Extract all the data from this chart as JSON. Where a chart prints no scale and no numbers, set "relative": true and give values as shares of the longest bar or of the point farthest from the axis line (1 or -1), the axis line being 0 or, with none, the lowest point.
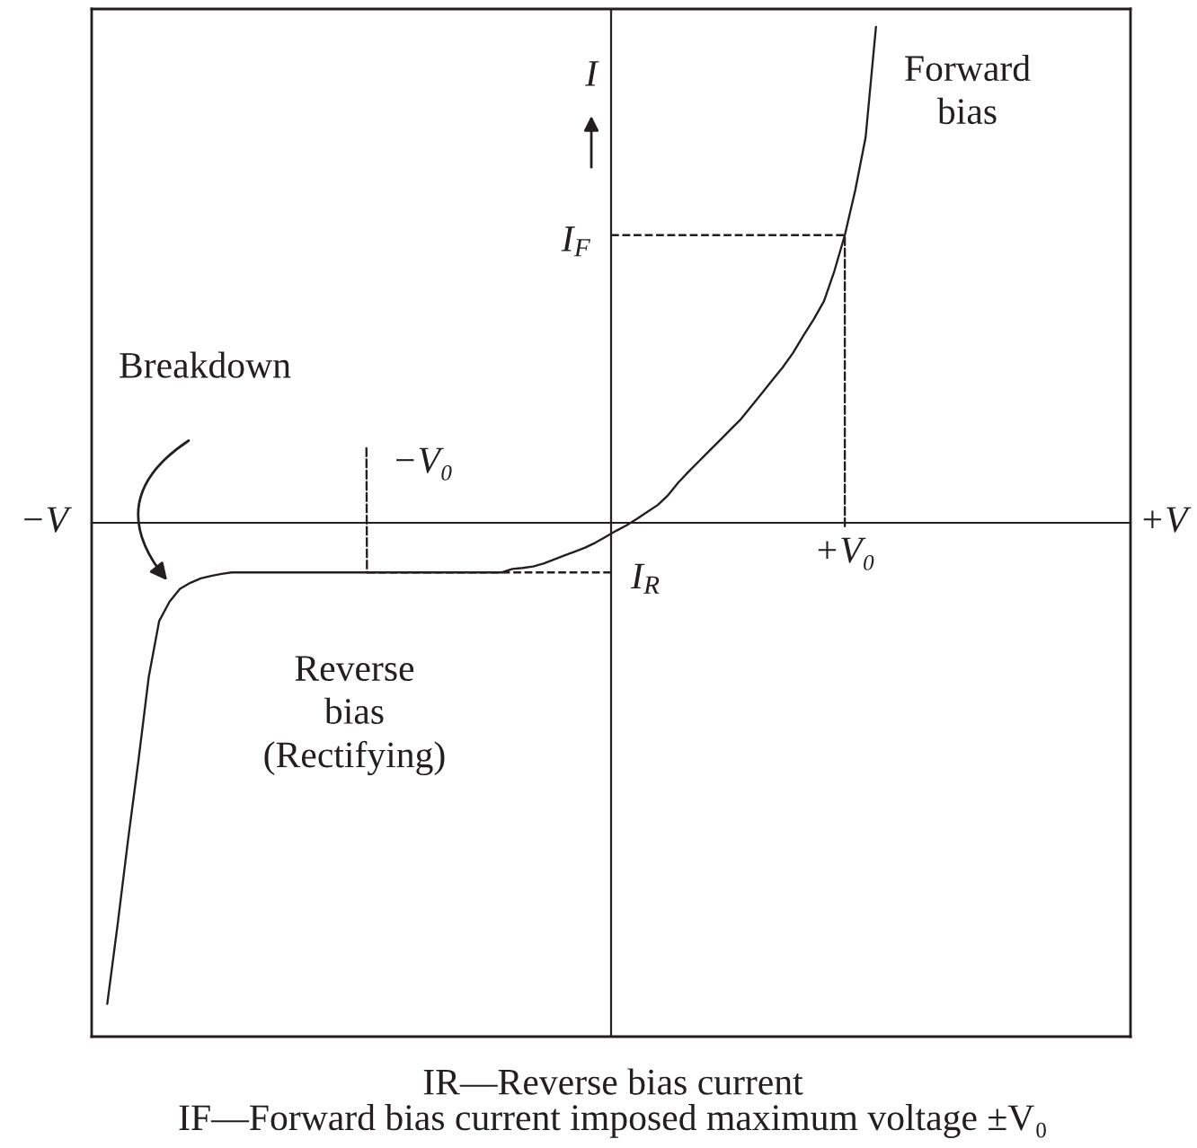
{
  "chart_data": {
    "type": "line",
    "relative": true,
    "ylabel": "I",
    "categories": [
      null,
      null,
      null,
      null,
      null,
      null,
      null,
      null,
      null,
      null,
      null,
      null,
      null,
      null,
      null,
      null,
      null,
      null,
      null,
      null,
      null,
      null,
      null,
      null,
      null,
      null,
      null,
      null,
      null,
      null,
      null,
      null,
      null,
      null,
      null,
      null,
      null,
      null,
      null,
      null,
      null,
      null,
      null,
      null,
      null,
      null,
      null,
      null,
      null,
      null,
      null,
      null,
      null,
      null,
      null,
      null,
      null,
      null,
      null,
      null,
      null,
      null,
      null,
      null,
      null,
      null,
      null,
      null,
      null,
      null,
      null,
      null,
      null,
      null,
      null,
      null,
      null,
      null,
      null,
      null,
      null,
      null,
      null,
      null,
      null,
      null,
      null,
      null,
      null,
      null,
      null,
      null,
      null,
      null,
      null,
      null,
      null,
      null,
      null,
      null
    ],
    "series": [
      {
        "color": "#231f20",
        "values": [
          null,
          -0.97,
          -0.81,
          -0.64,
          -0.48,
          -0.31,
          -0.198,
          -0.159,
          -0.133,
          -0.121,
          -0.112,
          -0.107,
          -0.103,
          -0.1,
          -0.1,
          -0.1,
          -0.1,
          -0.1,
          -0.1,
          -0.1,
          -0.1,
          -0.1,
          -0.1,
          -0.1,
          -0.1,
          -0.1,
          -0.1,
          -0.1,
          -0.1,
          -0.1,
          -0.1,
          -0.1,
          -0.1,
          -0.1,
          -0.1,
          -0.1,
          -0.1,
          -0.1,
          -0.1,
          -0.1,
          -0.093,
          -0.091,
          -0.088,
          -0.082,
          -0.074,
          -0.066,
          -0.058,
          -0.05,
          -0.04,
          -0.028,
          -0.016,
          -0.005,
          0.008,
          0.022,
          0.036,
          0.056,
          0.082,
          0.104,
          0.125,
          0.146,
          0.167,
          0.188,
          0.209,
          0.235,
          0.261,
          0.287,
          0.313,
          0.342,
          0.377,
          0.41,
          0.447,
          0.508,
          0.58,
          0.67,
          0.777,
          1.0,
          null,
          null,
          null,
          null,
          null,
          null,
          null,
          null,
          null,
          null,
          null,
          null,
          null,
          null,
          null,
          null,
          null,
          null,
          null,
          null,
          null,
          null,
          null,
          null
        ]
      }
    ],
    "ref_lines": [
      {
        "axis": "y",
        "value": 0.58,
        "label": "I$_{F}$",
        "color": "#231f20",
        "line_style": "dashed"
      },
      {
        "axis": "y",
        "value": -0.1,
        "label": "I$_{R}$",
        "color": "#231f20",
        "line_style": "dashed"
      }
    ],
    "annotations": [
      {
        "text": "−V₀",
        "y": -0.1
      },
      {
        "text": "+V₀",
        "y": 0.58
      },
      "Breakdown",
      "−V",
      "+V",
      "Forward\nbias",
      "Reverse\nbias\n(Rectifying)",
      "IR—Reverse bias current",
      "IF—Forward bias current imposed maximum voltage ±V₀"
    ]
  }
}
